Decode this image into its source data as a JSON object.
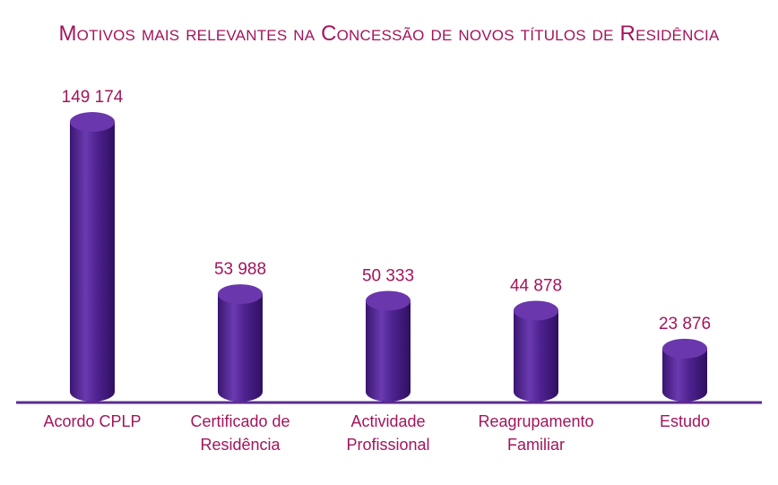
{
  "chart_data": {
    "type": "bar",
    "title": "Motivos mais relevantes na Concessão de novos títulos de Residência",
    "categories": [
      [
        "Acordo CPLP"
      ],
      [
        "Certificado de",
        "Residência"
      ],
      [
        "Actividade",
        "Profissional"
      ],
      [
        "Reagrupamento",
        "Familiar"
      ],
      [
        "Estudo"
      ]
    ],
    "values": [
      149174,
      53988,
      50333,
      44878,
      23876
    ],
    "value_labels": [
      "149 174",
      "53 988",
      "50 333",
      "44 878",
      "23 876"
    ],
    "bar_style": "cylinder",
    "ylim": [
      0,
      149174
    ],
    "grid": false,
    "legend": "none",
    "colors": {
      "bar": "#4b1e86",
      "bar_highlight": "#7a4bc0",
      "bar_top": "#6a37ad",
      "text": "#a3155b",
      "axis": "#5b2c8e"
    }
  }
}
